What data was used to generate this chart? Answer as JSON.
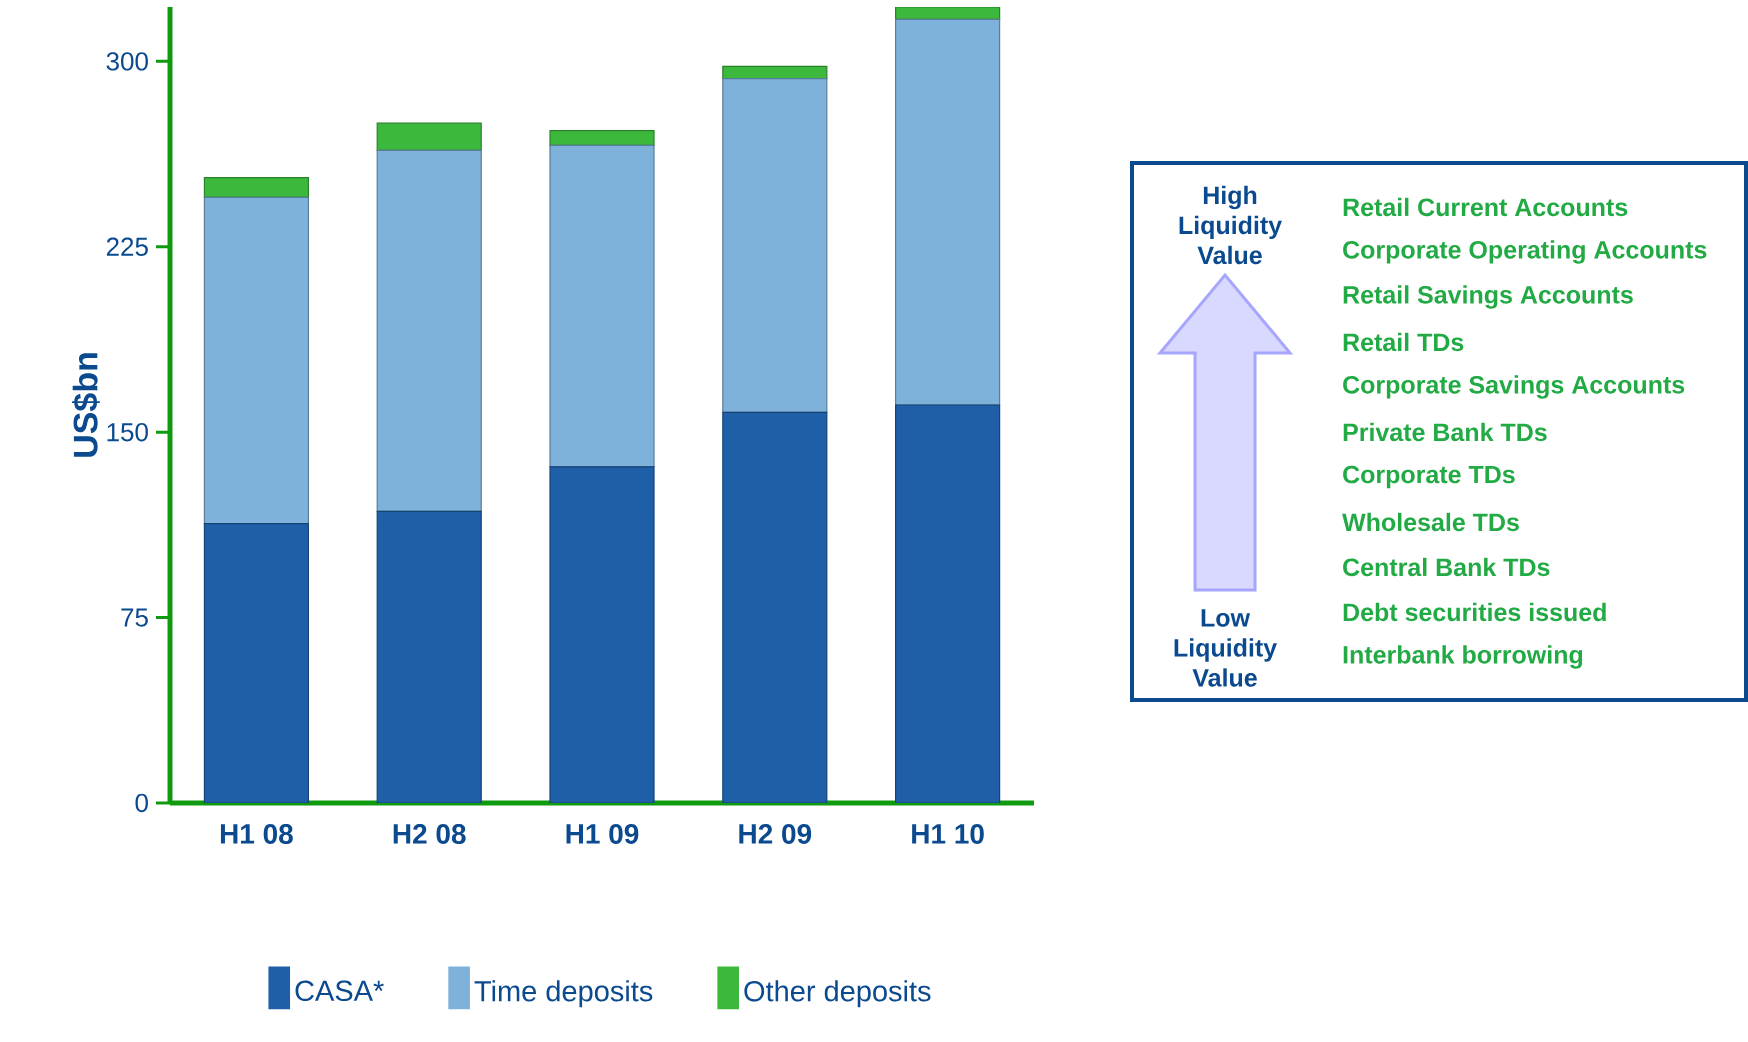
{
  "chart_data": {
    "type": "bar",
    "stacked": true,
    "ylabel": "US$bn",
    "categories": [
      "H1 08",
      "H2 08",
      "H1 09",
      "H2 09",
      "H1 10"
    ],
    "series": [
      {
        "name": "CASA*",
        "color": "#1f5fa8",
        "values": [
          113,
          118,
          136,
          158,
          161
        ]
      },
      {
        "name": "Time deposits",
        "color": "#7fb2da",
        "values": [
          132,
          146,
          130,
          135,
          156
        ]
      },
      {
        "name": "Other deposits",
        "color": "#3cb83c",
        "values": [
          8,
          11,
          6,
          5,
          5
        ]
      }
    ],
    "ylim": [
      0,
      322
    ],
    "yticks": [
      0,
      75,
      150,
      225,
      300
    ],
    "grid": false,
    "legend": "bottom",
    "annotations": [
      "High Liquidity Value",
      "Low Liquidity Value",
      "Retail Current Accounts",
      "Corporate Operating Accounts",
      "Retail Savings Accounts",
      "Retail TDs",
      "Corporate Savings Accounts",
      "Private Bank TDs",
      "Corporate TDs",
      "Wholesale TDs",
      "Central Bank TDs",
      "Debt securities issued",
      "Interbank borrowing"
    ]
  }
}
